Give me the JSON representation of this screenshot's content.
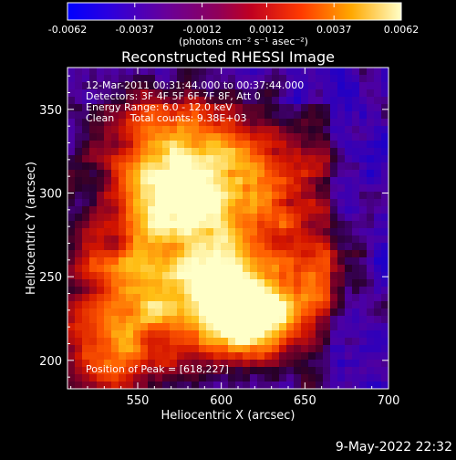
{
  "chart_data": {
    "type": "heatmap",
    "title": "Reconstructed RHESSI Image",
    "xlabel": "Heliocentric X (arcsec)",
    "ylabel": "Heliocentric Y (arcsec)",
    "xlim": [
      508,
      700
    ],
    "ylim": [
      183,
      375
    ],
    "x_ticks": [
      550,
      600,
      650,
      700
    ],
    "y_ticks": [
      200,
      250,
      300,
      350
    ],
    "colorbar": {
      "label": "(photons cm⁻² s⁻¹ asec⁻²)",
      "ticks": [
        "-0.0062",
        "-0.0037",
        "-0.0012",
        "0.0012",
        "0.0037",
        "0.0062"
      ],
      "range": [
        -0.0062,
        0.0062
      ]
    },
    "annotations": [
      "12-Mar-2011 00:31:44.000 to 00:37:44.000",
      "Detectors: 3F 4F 5F 6F 7F 8F, Att 0",
      "Energy Range: 6.0 - 12.0 keV",
      "Clean     Total counts: 9.38E+03"
    ],
    "peak_label": "Position of Peak = [618,227]",
    "peak": [
      618,
      227
    ],
    "timestamp": "9-May-2022 22:32"
  }
}
